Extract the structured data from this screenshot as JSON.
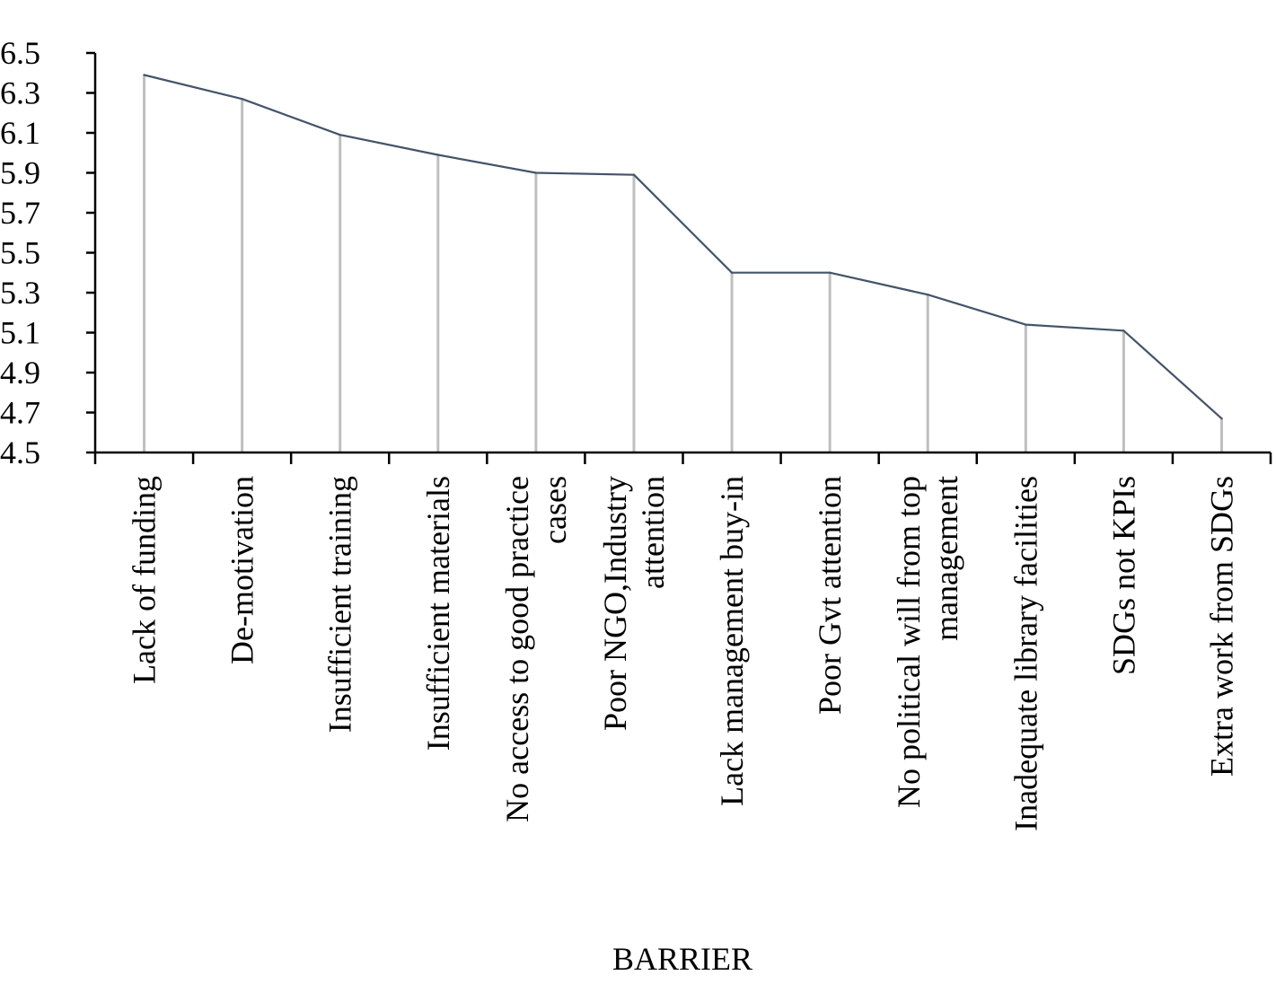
{
  "chart_data": {
    "type": "line",
    "title": "",
    "xlabel": "BARRIER",
    "ylabel": "",
    "ylim": [
      4.5,
      6.5
    ],
    "yticks": [
      "4.5",
      "4.7",
      "4.9",
      "5.1",
      "5.3",
      "5.5",
      "5.7",
      "5.9",
      "6.1",
      "6.3",
      "6.5"
    ],
    "grid": false,
    "drop_lines": true,
    "colors": {
      "line": "#44546a",
      "drop_line": "#bfbfbf",
      "axis": "#000000"
    },
    "categories": [
      [
        "Lack of funding"
      ],
      [
        "De-motivation"
      ],
      [
        "Insufficient training"
      ],
      [
        "Insufficient materials"
      ],
      [
        "No access to good practice",
        "cases"
      ],
      [
        "Poor NGO,Industry",
        "attention"
      ],
      [
        "Lack management buy-in"
      ],
      [
        "Poor Gvt attention"
      ],
      [
        "No political will from top",
        "management"
      ],
      [
        "Inadequate library facilities"
      ],
      [
        "SDGs not KPIs"
      ],
      [
        "Extra work from SDGs"
      ]
    ],
    "series": [
      {
        "values": [
          6.39,
          6.27,
          6.09,
          5.99,
          5.9,
          5.89,
          5.4,
          5.4,
          5.29,
          5.14,
          5.11,
          4.67
        ]
      }
    ]
  }
}
